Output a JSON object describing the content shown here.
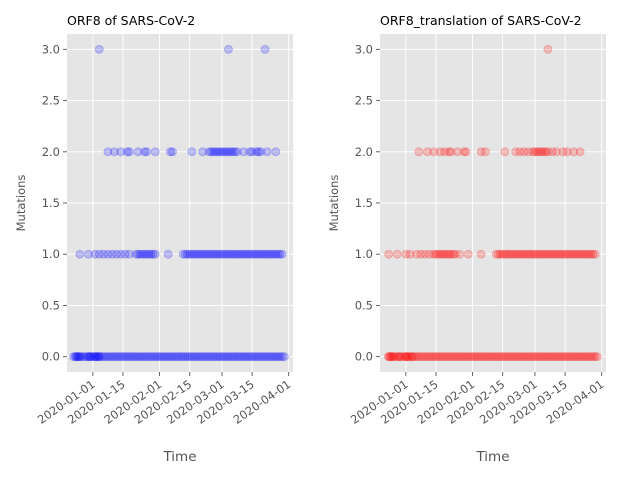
{
  "figure_kind": "mutation-timeline",
  "chart_data": [
    {
      "type": "scatter",
      "title": "ORF8 of SARS-CoV-2",
      "xlabel": "Time",
      "ylabel": "Mutations",
      "color": "#0000ff",
      "marker_alpha": 0.2,
      "grid": true,
      "x_ticks": [
        "2020-01-01",
        "2020-01-15",
        "2020-02-01",
        "2020-02-15",
        "2020-03-01",
        "2020-03-15",
        "2020-04-01"
      ],
      "xlim": [
        "2019-12-20",
        "2020-04-03"
      ],
      "y_ticks": [
        "0.0",
        "0.5",
        "1.0",
        "1.5",
        "2.0",
        "2.5",
        "3.0"
      ],
      "ylim": [
        -0.15,
        3.15
      ],
      "points_by_mutations": {
        "0": {
          "range": [
            "2019-12-24",
            "2020-03-30"
          ],
          "explicit": [
            "2019-12-23",
            "2019-12-24",
            "2019-12-25",
            "2019-12-26",
            "2019-12-30",
            "2019-12-31",
            "2020-01-02",
            "2020-01-03",
            "2020-01-04"
          ]
        },
        "1": {
          "explicit": [
            "2019-12-26",
            "2019-12-30",
            "2020-01-02",
            "2020-01-04",
            "2020-01-06",
            "2020-01-08",
            "2020-01-10",
            "2020-01-12",
            "2020-01-14",
            "2020-01-16",
            "2020-01-18",
            "2020-01-21",
            "2020-01-22",
            "2020-01-23",
            "2020-01-24",
            "2020-01-25",
            "2020-01-26",
            "2020-01-27",
            "2020-01-28",
            "2020-01-29",
            "2020-01-30",
            "2020-02-05"
          ],
          "range": [
            "2020-02-12",
            "2020-03-29"
          ]
        },
        "2": [
          "2020-01-08",
          "2020-01-11",
          "2020-01-14",
          "2020-01-17",
          "2020-01-18",
          "2020-01-22",
          "2020-01-25",
          "2020-01-26",
          "2020-01-30",
          "2020-02-06",
          "2020-02-07",
          "2020-02-16",
          "2020-02-21",
          "2020-02-24",
          "2020-02-25",
          "2020-02-26",
          "2020-02-27",
          "2020-02-28",
          "2020-02-29",
          "2020-03-01",
          "2020-03-02",
          "2020-03-03",
          "2020-03-04",
          "2020-03-05",
          "2020-03-06",
          "2020-03-07",
          "2020-03-08",
          "2020-03-11",
          "2020-03-14",
          "2020-03-15",
          "2020-03-17",
          "2020-03-18",
          "2020-03-19",
          "2020-03-22",
          "2020-03-26"
        ],
        "3": [
          "2020-01-04",
          "2020-03-04",
          "2020-03-21"
        ]
      }
    },
    {
      "type": "scatter",
      "title": "ORF8_translation of SARS-CoV-2",
      "xlabel": "Time",
      "ylabel": "Mutations",
      "color": "#ff0000",
      "marker_alpha": 0.2,
      "grid": true,
      "x_ticks": [
        "2020-01-01",
        "2020-01-15",
        "2020-02-01",
        "2020-02-15",
        "2020-03-01",
        "2020-03-15",
        "2020-04-01"
      ],
      "xlim": [
        "2019-12-20",
        "2020-04-03"
      ],
      "y_ticks": [
        "0.0",
        "0.5",
        "1.0",
        "1.5",
        "2.0",
        "2.5",
        "3.0"
      ],
      "ylim": [
        -0.15,
        3.15
      ],
      "points_by_mutations": {
        "0": {
          "range": [
            "2019-12-24",
            "2020-03-30"
          ],
          "explicit": [
            "2019-12-24",
            "2019-12-25",
            "2019-12-26",
            "2019-12-29",
            "2020-01-01",
            "2020-01-02",
            "2020-01-04"
          ]
        },
        "1": {
          "explicit": [
            "2019-12-24",
            "2019-12-28",
            "2020-01-01",
            "2020-01-03",
            "2020-01-06",
            "2020-01-08",
            "2020-01-10",
            "2020-01-12",
            "2020-01-14",
            "2020-01-15",
            "2020-01-16",
            "2020-01-17",
            "2020-01-18",
            "2020-01-19",
            "2020-01-20",
            "2020-01-21",
            "2020-01-22",
            "2020-01-23",
            "2020-01-24",
            "2020-01-26",
            "2020-01-30",
            "2020-02-05"
          ],
          "range": [
            "2020-02-12",
            "2020-03-29"
          ]
        },
        "2": [
          "2020-01-07",
          "2020-01-11",
          "2020-01-14",
          "2020-01-17",
          "2020-01-19",
          "2020-01-21",
          "2020-01-22",
          "2020-01-25",
          "2020-01-28",
          "2020-01-29",
          "2020-02-05",
          "2020-02-07",
          "2020-02-16",
          "2020-02-21",
          "2020-02-23",
          "2020-02-25",
          "2020-02-27",
          "2020-02-29",
          "2020-03-01",
          "2020-03-02",
          "2020-03-03",
          "2020-03-04",
          "2020-03-05",
          "2020-03-06",
          "2020-03-07",
          "2020-03-09",
          "2020-03-11",
          "2020-03-14",
          "2020-03-16",
          "2020-03-19",
          "2020-03-22"
        ],
        "3": [
          "2020-03-07"
        ]
      }
    }
  ]
}
